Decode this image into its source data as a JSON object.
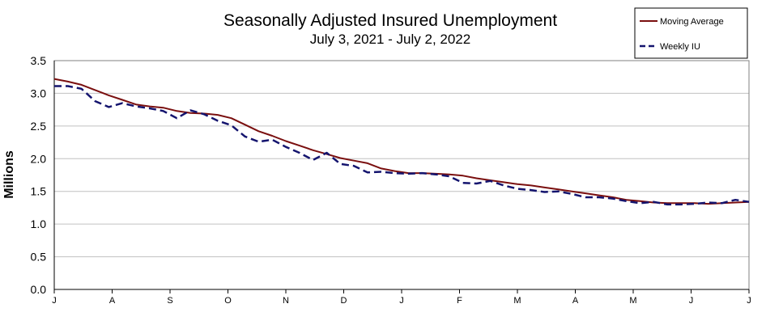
{
  "chart_data": {
    "type": "line",
    "title": "Seasonally Adjusted Insured Unemployment",
    "subtitle": "July 3, 2021 - July 2, 2022",
    "ylabel": "Millions",
    "xlabel": "",
    "ylim": [
      0.0,
      3.5
    ],
    "yticks": [
      "0.0",
      "0.5",
      "1.0",
      "1.5",
      "2.0",
      "2.5",
      "3.0",
      "3.5"
    ],
    "xticks": [
      "J",
      "A",
      "S",
      "O",
      "N",
      "D",
      "J",
      "F",
      "M",
      "A",
      "M",
      "J",
      "J"
    ],
    "grid": "horizontal",
    "legend_position": "top-right",
    "colors": {
      "moving_average": "#7a0f0f",
      "weekly_iu": "#14146e",
      "grid": "#c0c0c0"
    },
    "series": [
      {
        "name": "Moving Average",
        "style": "solid",
        "values": [
          3.22,
          3.18,
          3.13,
          3.05,
          2.97,
          2.9,
          2.83,
          2.8,
          2.78,
          2.73,
          2.7,
          2.69,
          2.67,
          2.62,
          2.52,
          2.42,
          2.35,
          2.27,
          2.2,
          2.13,
          2.07,
          2.01,
          1.97,
          1.93,
          1.85,
          1.81,
          1.78,
          1.78,
          1.77,
          1.76,
          1.74,
          1.7,
          1.67,
          1.64,
          1.61,
          1.59,
          1.56,
          1.53,
          1.5,
          1.47,
          1.44,
          1.41,
          1.37,
          1.35,
          1.33,
          1.32,
          1.32,
          1.32,
          1.31,
          1.32,
          1.33,
          1.34
        ]
      },
      {
        "name": "Weekly IU",
        "style": "dashed",
        "values": [
          3.11,
          3.11,
          3.07,
          2.88,
          2.79,
          2.85,
          2.8,
          2.77,
          2.73,
          2.62,
          2.74,
          2.68,
          2.58,
          2.51,
          2.34,
          2.26,
          2.29,
          2.18,
          2.09,
          1.98,
          2.09,
          1.92,
          1.89,
          1.79,
          1.8,
          1.78,
          1.77,
          1.78,
          1.76,
          1.73,
          1.63,
          1.62,
          1.66,
          1.59,
          1.54,
          1.52,
          1.49,
          1.5,
          1.46,
          1.41,
          1.41,
          1.39,
          1.35,
          1.32,
          1.34,
          1.3,
          1.3,
          1.31,
          1.33,
          1.32,
          1.37,
          1.34
        ]
      }
    ]
  }
}
